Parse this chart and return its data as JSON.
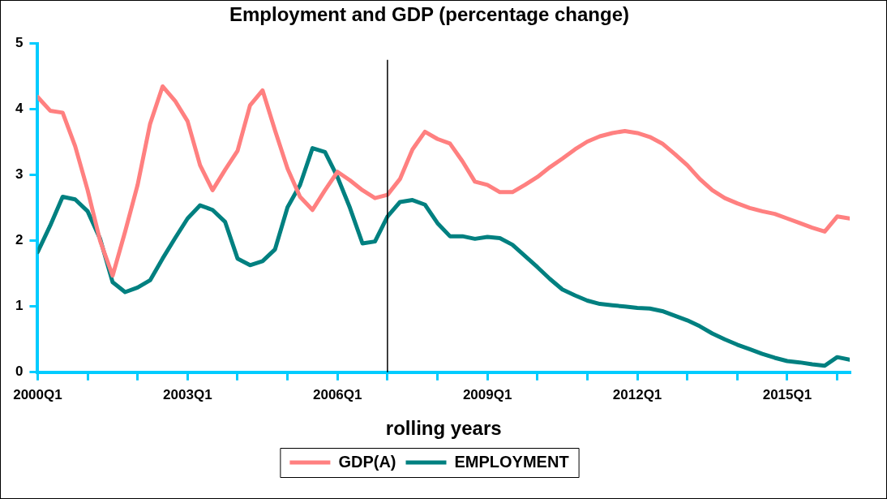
{
  "chart_data": {
    "type": "line",
    "title": "Employment and GDP (percentage change)",
    "xlabel": "rolling years",
    "x": [
      "2000-01",
      "2000-04",
      "2000-07",
      "2000-10",
      "2001-01",
      "2001-04",
      "2001-07",
      "2001-10",
      "2002-01",
      "2002-04",
      "2002-07",
      "2002-10",
      "2003-01",
      "2003-04",
      "2003-07",
      "2003-10",
      "2004-01",
      "2004-04",
      "2004-07",
      "2004-10",
      "2005-01",
      "2005-04",
      "2005-07",
      "2005-10",
      "2006-01",
      "2006-04",
      "2006-07",
      "2006-10",
      "2007-01",
      "2007-04",
      "2007-07",
      "2007-10",
      "2008-01",
      "2008-04",
      "2008-07",
      "2008-10",
      "2009-01",
      "2009-04",
      "2009-07",
      "2009-10",
      "2010-01",
      "2010-04",
      "2010-07",
      "2010-10",
      "2011-01",
      "2011-04",
      "2011-07",
      "2011-10",
      "2012-01",
      "2012-04",
      "2012-07",
      "2012-10",
      "2013-01",
      "2013-04",
      "2013-07",
      "2013-10",
      "2014-01",
      "2014-04",
      "2014-07",
      "2014-10",
      "2015-01",
      "2015-04",
      "2015-07",
      "2015-10",
      "2016-01",
      "2016-04"
    ],
    "series": [
      {
        "name": "GDP(A)",
        "color": "#ff8080",
        "values": [
          4.19,
          3.98,
          3.95,
          3.44,
          2.77,
          2.0,
          1.47,
          2.14,
          2.85,
          3.78,
          4.35,
          4.13,
          3.82,
          3.15,
          2.77,
          3.08,
          3.37,
          4.06,
          4.29,
          3.68,
          3.1,
          2.67,
          2.47,
          2.77,
          3.05,
          2.92,
          2.77,
          2.65,
          2.7,
          2.94,
          3.39,
          3.66,
          3.55,
          3.48,
          3.21,
          2.9,
          2.85,
          2.74,
          2.74,
          2.85,
          2.97,
          3.12,
          3.25,
          3.39,
          3.51,
          3.59,
          3.64,
          3.67,
          3.64,
          3.58,
          3.48,
          3.32,
          3.15,
          2.94,
          2.77,
          2.65,
          2.57,
          2.5,
          2.45,
          2.41,
          2.34,
          2.27,
          2.2,
          2.14,
          2.37,
          2.34
        ]
      },
      {
        "name": "EMPLOYMENT",
        "color": "#008080",
        "values": [
          1.83,
          2.23,
          2.67,
          2.63,
          2.45,
          2.03,
          1.37,
          1.22,
          1.29,
          1.4,
          1.73,
          2.04,
          2.34,
          2.54,
          2.47,
          2.29,
          1.73,
          1.63,
          1.69,
          1.87,
          2.51,
          2.85,
          3.41,
          3.35,
          2.97,
          2.5,
          1.96,
          1.99,
          2.37,
          2.59,
          2.62,
          2.55,
          2.27,
          2.07,
          2.07,
          2.03,
          2.06,
          2.04,
          1.94,
          1.77,
          1.6,
          1.42,
          1.26,
          1.17,
          1.09,
          1.04,
          1.02,
          1.0,
          0.98,
          0.97,
          0.93,
          0.86,
          0.79,
          0.7,
          0.59,
          0.5,
          0.42,
          0.35,
          0.28,
          0.22,
          0.17,
          0.15,
          0.12,
          0.1,
          0.23,
          0.19
        ]
      }
    ],
    "xlim": [
      "2000-01",
      "2016-04"
    ],
    "xticks": [
      {
        "value": "2000-01",
        "label": "2000Q1"
      },
      {
        "value": "2001-01",
        "label": null
      },
      {
        "value": "2002-01",
        "label": null
      },
      {
        "value": "2003-01",
        "label": "2003Q1"
      },
      {
        "value": "2004-01",
        "label": null
      },
      {
        "value": "2005-01",
        "label": null
      },
      {
        "value": "2006-01",
        "label": "2006Q1"
      },
      {
        "value": "2007-01",
        "label": null
      },
      {
        "value": "2008-01",
        "label": null
      },
      {
        "value": "2009-01",
        "label": "2009Q1"
      },
      {
        "value": "2010-01",
        "label": null
      },
      {
        "value": "2011-01",
        "label": null
      },
      {
        "value": "2012-01",
        "label": "2012Q1"
      },
      {
        "value": "2013-01",
        "label": null
      },
      {
        "value": "2014-01",
        "label": null
      },
      {
        "value": "2015-01",
        "label": "2015Q1"
      },
      {
        "value": "2016-01",
        "label": null
      }
    ],
    "ylim": [
      0,
      5
    ],
    "yticks": [
      0,
      1,
      2,
      3,
      4,
      5
    ],
    "ref_lines": [
      {
        "axis": "x",
        "value": "2007-01",
        "color": "#000000"
      }
    ],
    "legend": "bottom",
    "marker": "none",
    "line_style": "solid"
  }
}
